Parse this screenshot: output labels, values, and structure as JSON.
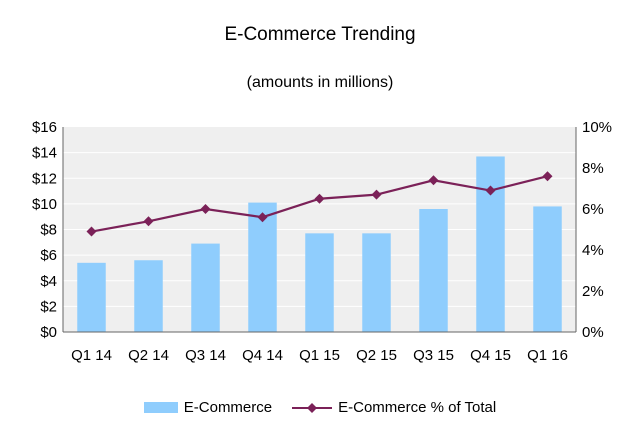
{
  "chart_data": {
    "type": "bar",
    "title": "E-Commerce Trending",
    "subtitle": "(amounts in millions)",
    "categories": [
      "Q1 14",
      "Q2 14",
      "Q3 14",
      "Q4 14",
      "Q1 15",
      "Q2 15",
      "Q3 15",
      "Q4 15",
      "Q1 16"
    ],
    "series": [
      {
        "name": "E-Commerce",
        "type": "bar",
        "axis": "left",
        "values": [
          5.4,
          5.6,
          6.9,
          10.1,
          7.7,
          7.7,
          9.6,
          13.7,
          9.8
        ]
      },
      {
        "name": "E-Commerce % of Total",
        "type": "line",
        "axis": "right",
        "marker": "diamond",
        "values": [
          4.9,
          5.4,
          6.0,
          5.6,
          6.5,
          6.7,
          7.4,
          6.9,
          7.6
        ]
      }
    ],
    "y_left": {
      "min": 0,
      "max": 16,
      "step": 2,
      "tick_labels": [
        "$0",
        "$2",
        "$4",
        "$6",
        "$8",
        "$10",
        "$12",
        "$14",
        "$16"
      ]
    },
    "y_right": {
      "min": 0,
      "max": 10,
      "step": 2,
      "tick_labels": [
        "0%",
        "2%",
        "4%",
        "6%",
        "8%",
        "10%"
      ]
    },
    "grid": true,
    "legend_position": "bottom",
    "colors": {
      "bar": "#8fcdfd",
      "line": "#7b2158",
      "plot_bg": "#efefef",
      "grid": "#ffffff"
    }
  }
}
